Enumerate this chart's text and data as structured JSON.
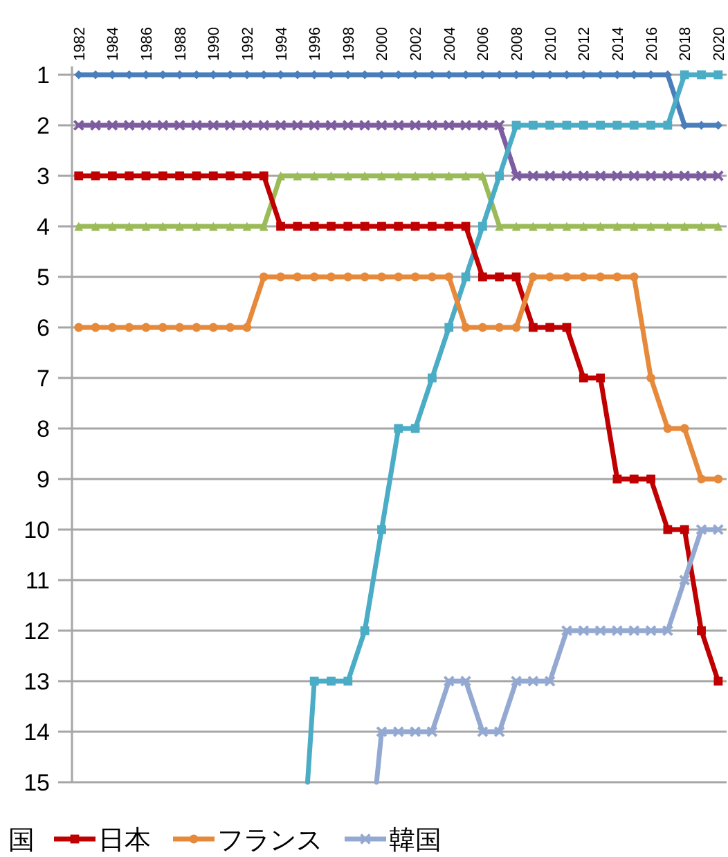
{
  "chart_data": {
    "type": "line",
    "x": [
      1982,
      1983,
      1984,
      1985,
      1986,
      1987,
      1988,
      1989,
      1990,
      1991,
      1992,
      1993,
      1994,
      1995,
      1996,
      1997,
      1998,
      1999,
      2000,
      2001,
      2002,
      2003,
      2004,
      2005,
      2006,
      2007,
      2008,
      2009,
      2010,
      2011,
      2012,
      2013,
      2014,
      2015,
      2016,
      2017,
      2018,
      2019,
      2020
    ],
    "xlim": [
      1981.6,
      2020.5
    ],
    "xticks": [
      1982,
      1984,
      1986,
      1988,
      1990,
      1992,
      1994,
      1996,
      1998,
      2000,
      2002,
      2004,
      2006,
      2008,
      2010,
      2012,
      2014,
      2016,
      2018,
      2020
    ],
    "ylim": [
      15,
      1
    ],
    "yticks": [
      1,
      2,
      3,
      4,
      5,
      6,
      7,
      8,
      9,
      10,
      11,
      12,
      13,
      14,
      15
    ],
    "grid": "y",
    "legend": "bottom",
    "line_style": "solid",
    "annotations": [
      "国"
    ],
    "series": [
      {
        "color": "#4a7ebb",
        "marker": "diamond",
        "values": [
          1,
          1,
          1,
          1,
          1,
          1,
          1,
          1,
          1,
          1,
          1,
          1,
          1,
          1,
          1,
          1,
          1,
          1,
          1,
          1,
          1,
          1,
          1,
          1,
          1,
          1,
          1,
          1,
          1,
          1,
          1,
          1,
          1,
          1,
          1,
          1,
          2,
          2,
          2
        ]
      },
      {
        "color": "#7e5ca0",
        "marker": "cross",
        "values": [
          2,
          2,
          2,
          2,
          2,
          2,
          2,
          2,
          2,
          2,
          2,
          2,
          2,
          2,
          2,
          2,
          2,
          2,
          2,
          2,
          2,
          2,
          2,
          2,
          2,
          2,
          3,
          3,
          3,
          3,
          3,
          3,
          3,
          3,
          3,
          3,
          3,
          3,
          3
        ]
      },
      {
        "color": "#9bbb59",
        "marker": "triangle",
        "values": [
          4,
          4,
          4,
          4,
          4,
          4,
          4,
          4,
          4,
          4,
          4,
          4,
          3,
          3,
          3,
          3,
          3,
          3,
          3,
          3,
          3,
          3,
          3,
          3,
          3,
          4,
          4,
          4,
          4,
          4,
          4,
          4,
          4,
          4,
          4,
          4,
          4,
          4,
          4
        ]
      },
      {
        "color": "#4bacc6",
        "marker": "square",
        "x": [
          1995.6,
          1996,
          1997,
          1998,
          1999,
          2000,
          2001,
          2002,
          2003,
          2004,
          2005,
          2006,
          2007,
          2008,
          2009,
          2010,
          2011,
          2012,
          2013,
          2014,
          2015,
          2016,
          2017,
          2018,
          2019,
          2020
        ],
        "values": [
          15,
          13,
          13,
          13,
          12,
          10,
          8,
          8,
          7,
          6,
          5,
          4,
          3,
          2,
          2,
          2,
          2,
          2,
          2,
          2,
          2,
          2,
          2,
          1,
          1,
          1
        ]
      },
      {
        "name": "日本",
        "color": "#c00000",
        "marker": "square",
        "values": [
          3,
          3,
          3,
          3,
          3,
          3,
          3,
          3,
          3,
          3,
          3,
          3,
          4,
          4,
          4,
          4,
          4,
          4,
          4,
          4,
          4,
          4,
          4,
          4,
          5,
          5,
          5,
          6,
          6,
          6,
          7,
          7,
          9,
          9,
          9,
          10,
          10,
          12,
          13
        ]
      },
      {
        "name": "フランス",
        "color": "#e6893a",
        "marker": "circle",
        "values": [
          6,
          6,
          6,
          6,
          6,
          6,
          6,
          6,
          6,
          6,
          6,
          5,
          5,
          5,
          5,
          5,
          5,
          5,
          5,
          5,
          5,
          5,
          5,
          6,
          6,
          6,
          6,
          5,
          5,
          5,
          5,
          5,
          5,
          5,
          7,
          8,
          8,
          9,
          9
        ]
      },
      {
        "name": "韓国",
        "color": "#94a9d1",
        "marker": "cross",
        "x": [
          1999.7,
          2000,
          2001,
          2002,
          2003,
          2004,
          2005,
          2006,
          2007,
          2008,
          2009,
          2010,
          2011,
          2012,
          2013,
          2014,
          2015,
          2016,
          2017,
          2018,
          2019,
          2020
        ],
        "values": [
          15,
          14,
          14,
          14,
          14,
          13,
          13,
          14,
          14,
          13,
          13,
          13,
          12,
          12,
          12,
          12,
          12,
          12,
          12,
          11,
          10,
          10
        ]
      }
    ]
  }
}
